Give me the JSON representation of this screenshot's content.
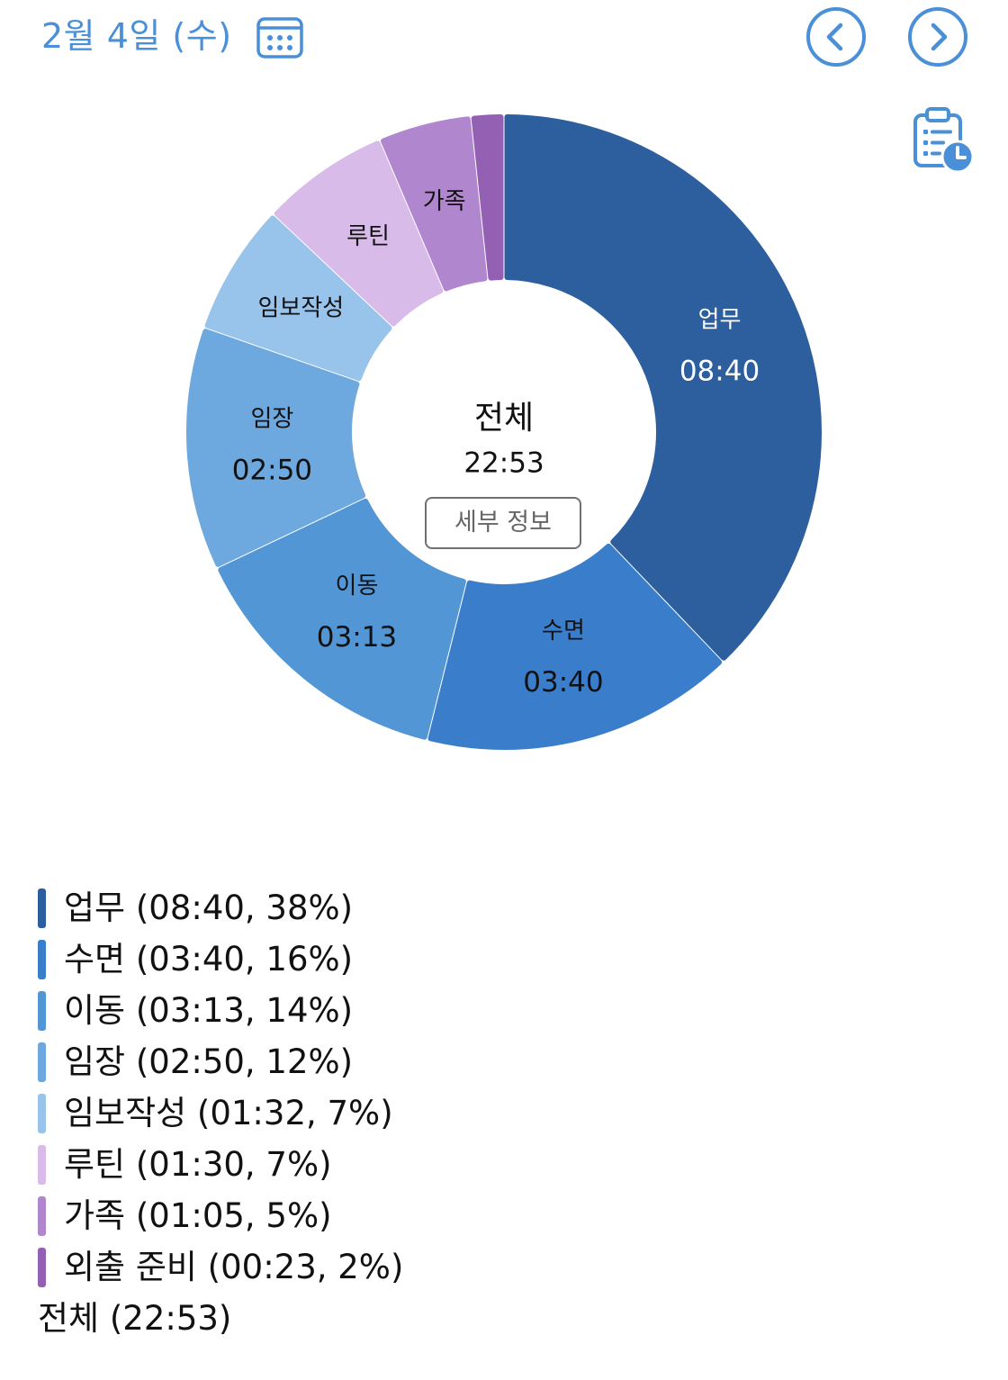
{
  "header": {
    "date_label": "2월 4일 (수)",
    "calendar_icon": "calendar-icon",
    "prev_icon": "chevron-left-circle-icon",
    "next_icon": "chevron-right-circle-icon",
    "timelog_icon": "clipboard-clock-icon",
    "accent_color": "#4a90d9"
  },
  "center": {
    "title": "전체",
    "total": "22:53",
    "detail_button": "세부 정보"
  },
  "chart_data": {
    "type": "pie",
    "title": "",
    "slices": [
      {
        "label": "업무",
        "time": "08:40",
        "minutes": 520,
        "percent": "38%",
        "color": "#2d5f9e",
        "text_color": "#ffffff",
        "show_time": true
      },
      {
        "label": "수면",
        "time": "03:40",
        "minutes": 220,
        "percent": "16%",
        "color": "#3a7ecb",
        "text_color": "#111111",
        "show_time": true
      },
      {
        "label": "이동",
        "time": "03:13",
        "minutes": 193,
        "percent": "14%",
        "color": "#5396d5",
        "text_color": "#111111",
        "show_time": true
      },
      {
        "label": "임장",
        "time": "02:50",
        "minutes": 170,
        "percent": "12%",
        "color": "#6da8df",
        "text_color": "#111111",
        "show_time": true
      },
      {
        "label": "임보작성",
        "time": "01:32",
        "minutes": 92,
        "percent": "7%",
        "color": "#98c3ea",
        "text_color": "#111111",
        "show_time": false
      },
      {
        "label": "루틴",
        "time": "01:30",
        "minutes": 90,
        "percent": "7%",
        "color": "#d8bbe8",
        "text_color": "#111111",
        "show_time": false
      },
      {
        "label": "가족",
        "time": "01:05",
        "minutes": 65,
        "percent": "5%",
        "color": "#b086cf",
        "text_color": "#111111",
        "show_time": false
      },
      {
        "label": "외출 준비",
        "time": "00:23",
        "minutes": 23,
        "percent": "2%",
        "color": "#9460b3",
        "text_color": "#111111",
        "show_time": false
      }
    ],
    "legend_placement": "bottom-left"
  },
  "legend": {
    "items": [
      {
        "text": "업무 (08:40, 38%)",
        "color": "#2d5f9e"
      },
      {
        "text": "수면 (03:40, 16%)",
        "color": "#3a7ecb"
      },
      {
        "text": "이동 (03:13, 14%)",
        "color": "#5396d5"
      },
      {
        "text": "임장 (02:50, 12%)",
        "color": "#6da8df"
      },
      {
        "text": "임보작성 (01:32, 7%)",
        "color": "#98c3ea"
      },
      {
        "text": "루틴 (01:30, 7%)",
        "color": "#d8bbe8"
      },
      {
        "text": "가족 (01:05, 5%)",
        "color": "#b086cf"
      },
      {
        "text": "외출 준비 (00:23, 2%)",
        "color": "#9460b3"
      }
    ],
    "total": "전체 (22:53)"
  }
}
